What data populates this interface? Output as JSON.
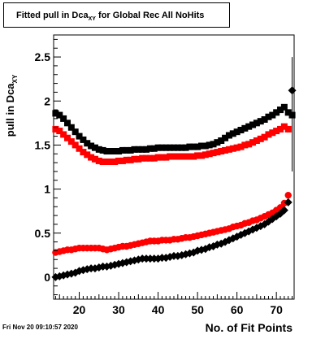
{
  "title": {
    "main": "Fitted pull in Dca",
    "sub": "XY",
    "rest": " for Global Rec All NoHits"
  },
  "timestamp": "Fri Nov 20 09:10:57 2020",
  "chart_data": {
    "type": "scatter",
    "xlabel": "No. of Fit Points",
    "ylabel": "pull in Dca",
    "ylabel_sub": "XY",
    "xlim": [
      13.5,
      74.5
    ],
    "ylim": [
      -0.25,
      2.75
    ],
    "xticks": [
      20,
      30,
      40,
      50,
      60,
      70
    ],
    "xtick_labels": [
      "20",
      "30",
      "40",
      "50",
      "60",
      "70"
    ],
    "yticks": [
      0,
      0.5,
      1,
      1.5,
      2,
      2.5
    ],
    "ytick_labels": [
      "0",
      "0.5",
      "1",
      "1.5",
      "2",
      "2.5"
    ],
    "grid": false,
    "series": [
      {
        "color": "#000000",
        "marker": "square",
        "x": [
          14,
          15,
          16,
          17,
          18,
          19,
          20,
          21,
          22,
          23,
          24,
          25,
          26,
          27,
          28,
          29,
          30,
          31,
          32,
          33,
          34,
          35,
          36,
          37,
          38,
          39,
          40,
          41,
          42,
          43,
          44,
          45,
          46,
          47,
          48,
          49,
          50,
          51,
          52,
          53,
          54,
          55,
          56,
          57,
          58,
          59,
          60,
          61,
          62,
          63,
          64,
          65,
          66,
          67,
          68,
          69,
          70,
          71,
          72,
          73,
          74
        ],
        "y": [
          1.86,
          1.84,
          1.8,
          1.75,
          1.7,
          1.65,
          1.6,
          1.56,
          1.52,
          1.49,
          1.47,
          1.45,
          1.44,
          1.43,
          1.43,
          1.43,
          1.43,
          1.44,
          1.44,
          1.44,
          1.45,
          1.45,
          1.45,
          1.45,
          1.46,
          1.46,
          1.47,
          1.47,
          1.47,
          1.47,
          1.47,
          1.47,
          1.47,
          1.47,
          1.48,
          1.48,
          1.48,
          1.49,
          1.49,
          1.5,
          1.51,
          1.53,
          1.55,
          1.58,
          1.61,
          1.63,
          1.65,
          1.67,
          1.69,
          1.71,
          1.73,
          1.75,
          1.77,
          1.79,
          1.82,
          1.84,
          1.87,
          1.9,
          1.93,
          1.87,
          1.84
        ]
      },
      {
        "color": "#ff0000",
        "marker": "square",
        "x": [
          14,
          15,
          16,
          17,
          18,
          19,
          20,
          21,
          22,
          23,
          24,
          25,
          26,
          27,
          28,
          29,
          30,
          31,
          32,
          33,
          34,
          35,
          36,
          37,
          38,
          39,
          40,
          41,
          42,
          43,
          44,
          45,
          46,
          47,
          48,
          49,
          50,
          51,
          52,
          53,
          54,
          55,
          56,
          57,
          58,
          59,
          60,
          61,
          62,
          63,
          64,
          65,
          66,
          67,
          68,
          69,
          70,
          71,
          72,
          73
        ],
        "y": [
          1.68,
          1.66,
          1.62,
          1.58,
          1.54,
          1.5,
          1.46,
          1.42,
          1.39,
          1.36,
          1.34,
          1.32,
          1.31,
          1.31,
          1.31,
          1.31,
          1.32,
          1.32,
          1.33,
          1.33,
          1.34,
          1.34,
          1.35,
          1.35,
          1.35,
          1.35,
          1.36,
          1.36,
          1.36,
          1.37,
          1.37,
          1.37,
          1.37,
          1.37,
          1.37,
          1.37,
          1.38,
          1.38,
          1.39,
          1.4,
          1.41,
          1.42,
          1.43,
          1.44,
          1.45,
          1.46,
          1.47,
          1.48,
          1.5,
          1.51,
          1.53,
          1.55,
          1.57,
          1.59,
          1.62,
          1.64,
          1.66,
          1.68,
          1.71,
          1.68
        ]
      },
      {
        "color": "#ff0000",
        "marker": "circle",
        "x": [
          14,
          15,
          16,
          17,
          18,
          19,
          20,
          21,
          22,
          23,
          24,
          25,
          26,
          27,
          28,
          29,
          30,
          31,
          32,
          33,
          34,
          35,
          36,
          37,
          38,
          39,
          40,
          41,
          42,
          43,
          44,
          45,
          46,
          47,
          48,
          49,
          50,
          51,
          52,
          53,
          54,
          55,
          56,
          57,
          58,
          59,
          60,
          61,
          62,
          63,
          64,
          65,
          66,
          67,
          68,
          69,
          70,
          71,
          72,
          73
        ],
        "y": [
          0.28,
          0.29,
          0.3,
          0.31,
          0.31,
          0.32,
          0.33,
          0.33,
          0.33,
          0.33,
          0.33,
          0.33,
          0.32,
          0.31,
          0.32,
          0.33,
          0.34,
          0.35,
          0.35,
          0.36,
          0.37,
          0.38,
          0.39,
          0.4,
          0.41,
          0.41,
          0.41,
          0.42,
          0.42,
          0.42,
          0.43,
          0.43,
          0.44,
          0.45,
          0.45,
          0.46,
          0.47,
          0.48,
          0.49,
          0.5,
          0.51,
          0.52,
          0.53,
          0.54,
          0.55,
          0.57,
          0.58,
          0.59,
          0.61,
          0.62,
          0.64,
          0.65,
          0.67,
          0.69,
          0.71,
          0.73,
          0.76,
          0.79,
          0.84,
          0.93
        ]
      },
      {
        "color": "#000000",
        "marker": "diamond",
        "x": [
          14,
          15,
          16,
          17,
          18,
          19,
          20,
          21,
          22,
          23,
          24,
          25,
          26,
          27,
          28,
          29,
          30,
          31,
          32,
          33,
          34,
          35,
          36,
          37,
          38,
          39,
          40,
          41,
          42,
          43,
          44,
          45,
          46,
          47,
          48,
          49,
          50,
          51,
          52,
          53,
          54,
          55,
          56,
          57,
          58,
          59,
          60,
          61,
          62,
          63,
          64,
          65,
          66,
          67,
          68,
          69,
          70,
          71,
          72,
          73,
          74
        ],
        "y": [
          0.0,
          0.01,
          0.02,
          0.03,
          0.04,
          0.05,
          0.07,
          0.08,
          0.09,
          0.1,
          0.1,
          0.11,
          0.12,
          0.12,
          0.13,
          0.14,
          0.15,
          0.16,
          0.17,
          0.18,
          0.19,
          0.2,
          0.21,
          0.21,
          0.21,
          0.21,
          0.21,
          0.22,
          0.22,
          0.23,
          0.24,
          0.24,
          0.25,
          0.26,
          0.27,
          0.28,
          0.3,
          0.31,
          0.32,
          0.34,
          0.35,
          0.37,
          0.38,
          0.4,
          0.42,
          0.44,
          0.46,
          0.48,
          0.5,
          0.52,
          0.54,
          0.56,
          0.58,
          0.6,
          0.63,
          0.66,
          0.69,
          0.72,
          0.76,
          0.85,
          2.12
        ],
        "last_point_error": [
          0.92,
          0.38
        ]
      }
    ]
  }
}
